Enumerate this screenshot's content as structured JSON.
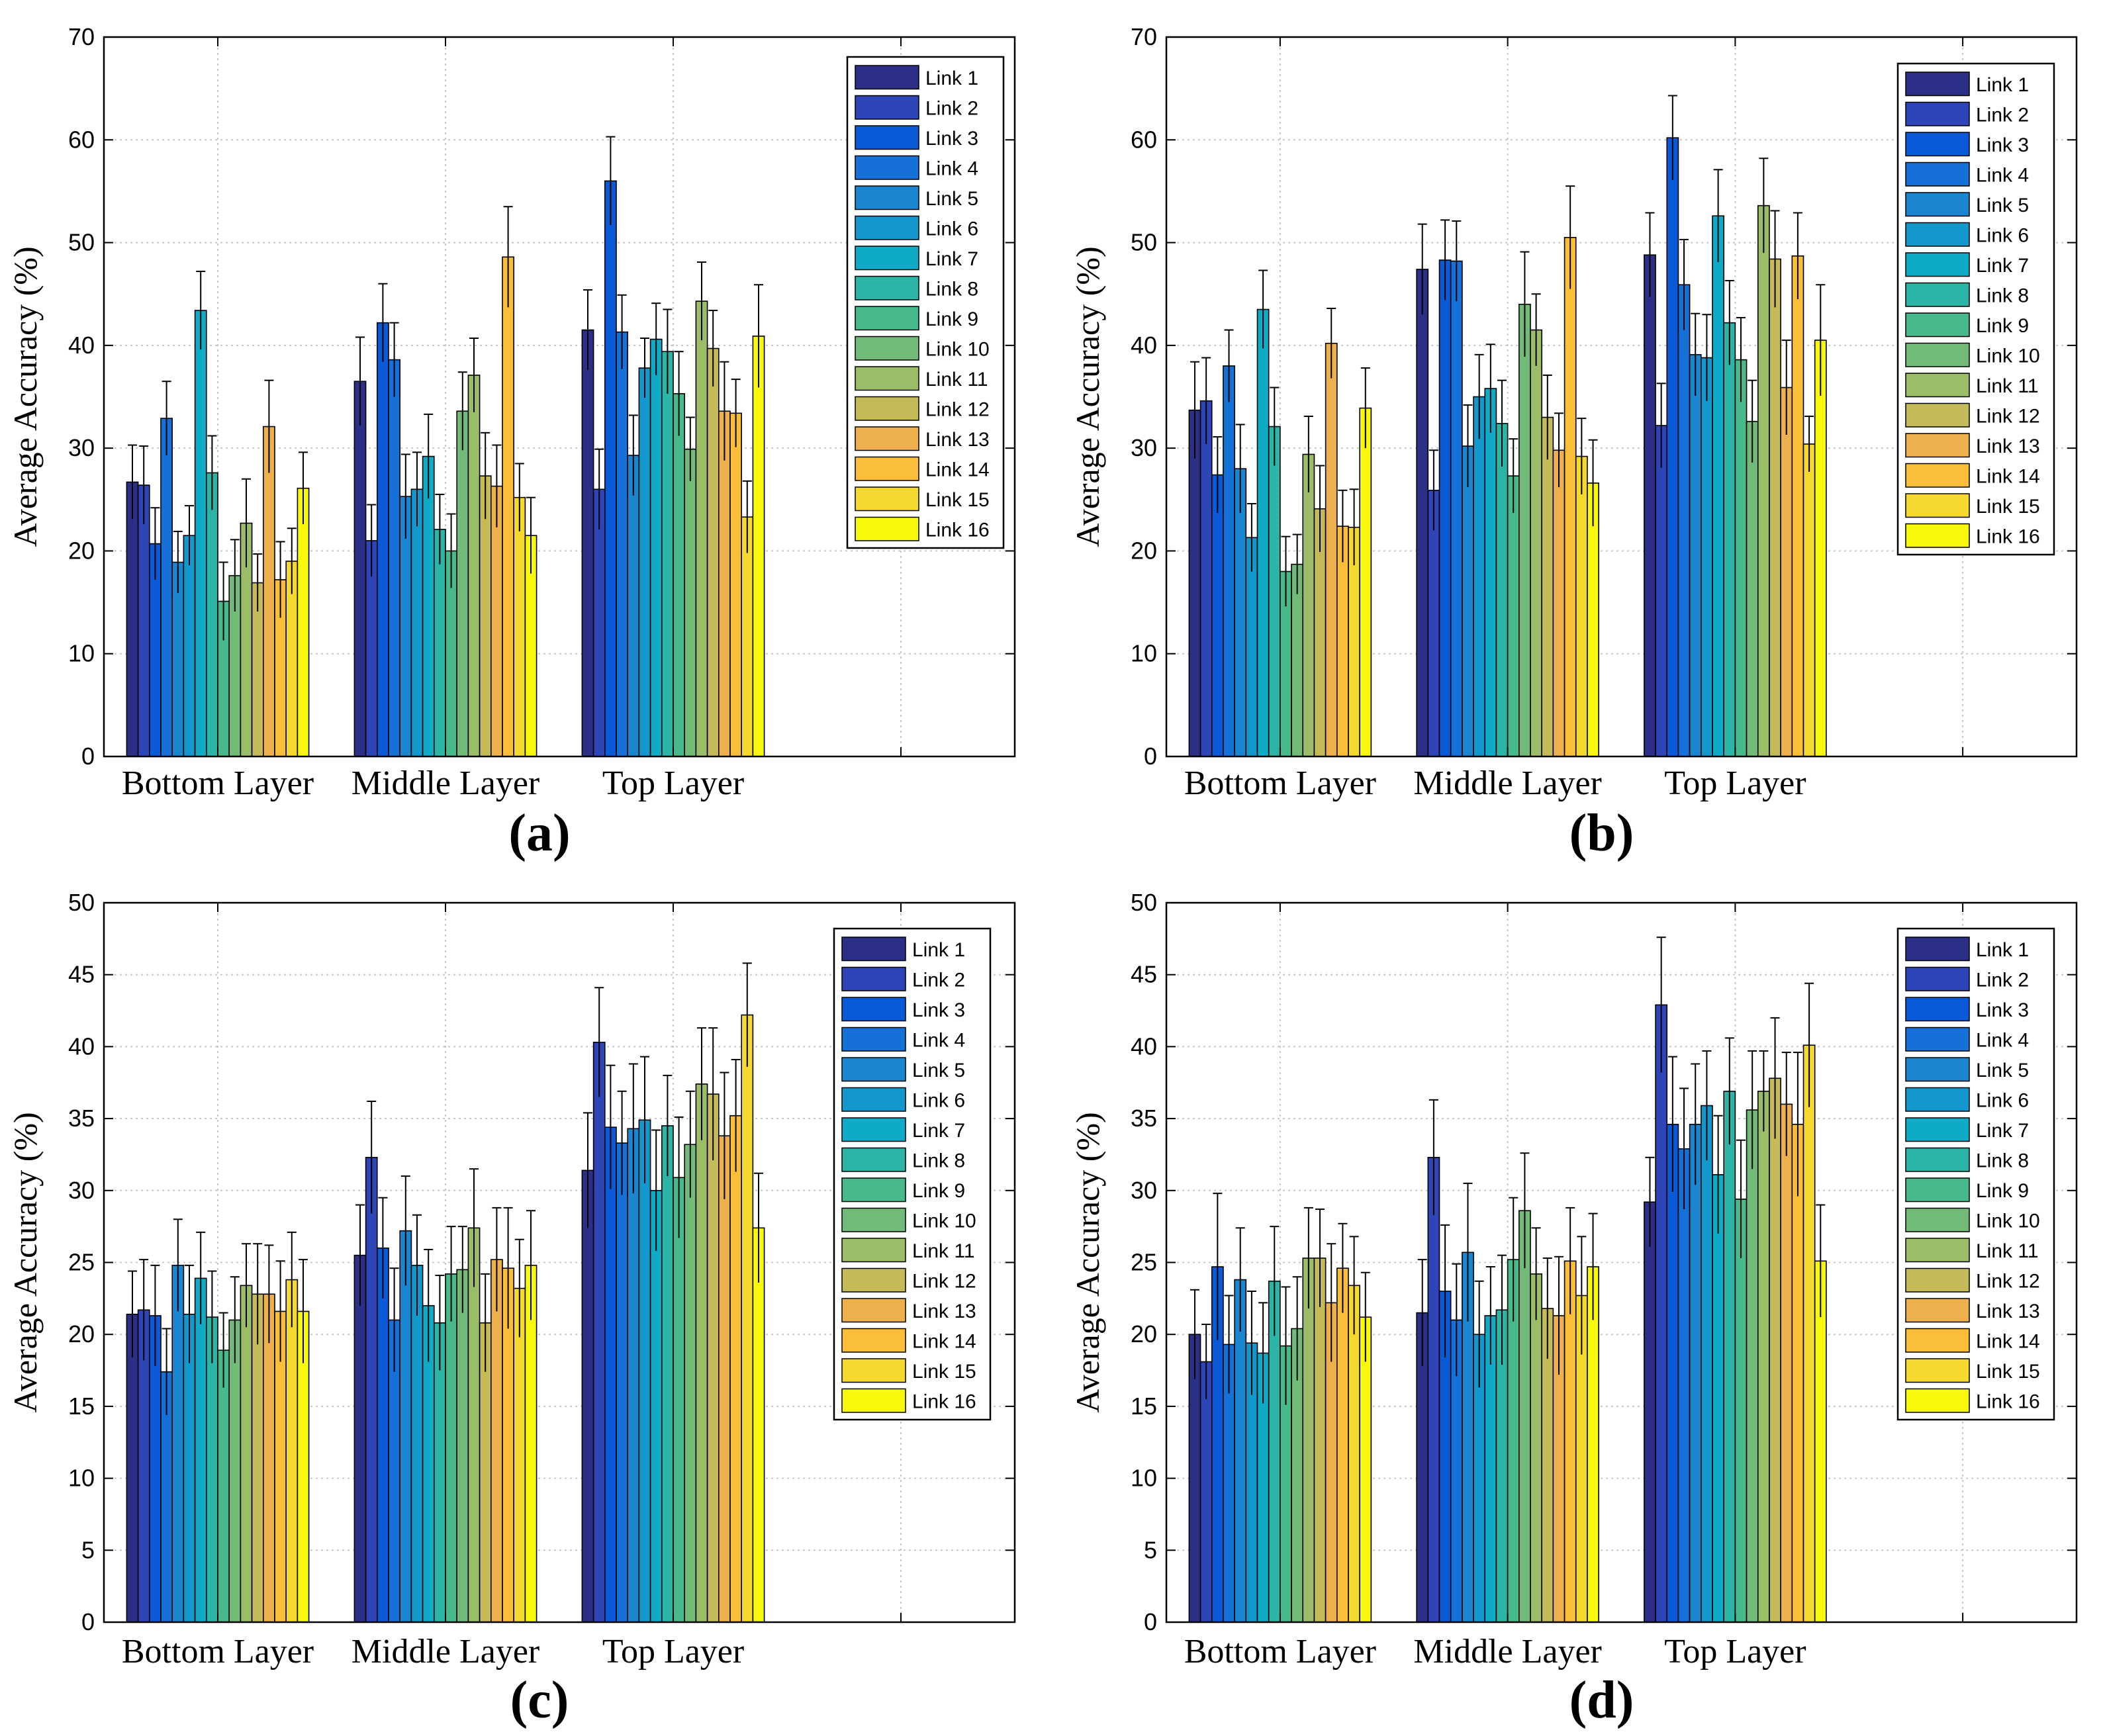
{
  "link_colors": [
    "#2c2f86",
    "#2e45b8",
    "#0a5ad8",
    "#1570d8",
    "#1a86d0",
    "#1298cc",
    "#0eaac6",
    "#2cb5a6",
    "#48b98a",
    "#72ba78",
    "#9cbd68",
    "#c4bb58",
    "#edb04c",
    "#fbbe38",
    "#f5d92e",
    "#f8f80c"
  ],
  "chart_data": [
    {
      "panel": "(a)",
      "type": "bar",
      "ylabel": "Average Accuracy (%)",
      "ylim": [
        0,
        70
      ],
      "yticks": [
        0,
        10,
        20,
        30,
        40,
        50,
        60,
        70
      ],
      "categories": [
        "Bottom Layer",
        "Middle Layer",
        "Top Layer"
      ],
      "legend": [
        "Link 1",
        "Link 2",
        "Link 3",
        "Link 4",
        "Link 5",
        "Link 6",
        "Link 7",
        "Link 8",
        "Link 9",
        "Link 10",
        "Link 11",
        "Link 12",
        "Link 13",
        "Link 14",
        "Link 15",
        "Link 16"
      ],
      "legend_position": "top-right",
      "values": [
        [
          26.7,
          26.4,
          20.7,
          32.9,
          18.9,
          21.5,
          43.4,
          27.6,
          15.1,
          17.6,
          22.7,
          16.9,
          32.1,
          17.2,
          19.0,
          26.1
        ],
        [
          36.5,
          21.0,
          42.2,
          38.6,
          25.3,
          26.0,
          29.2,
          22.1,
          20.0,
          33.6,
          37.1,
          27.3,
          26.3,
          48.6,
          25.2,
          21.5
        ],
        [
          41.5,
          26.0,
          56.0,
          41.3,
          29.3,
          37.8,
          40.6,
          39.4,
          35.3,
          29.9,
          44.3,
          39.7,
          33.6,
          33.4,
          23.3,
          40.9
        ]
      ],
      "errors": [
        [
          3.6,
          3.8,
          3.5,
          3.6,
          3.0,
          2.9,
          3.8,
          3.6,
          3.8,
          3.5,
          4.3,
          2.8,
          4.5,
          3.7,
          3.2,
          3.5
        ],
        [
          4.3,
          3.5,
          3.8,
          3.6,
          4.1,
          3.6,
          4.1,
          3.4,
          3.6,
          3.8,
          3.6,
          4.2,
          4.0,
          4.9,
          3.3,
          3.7
        ],
        [
          3.9,
          3.9,
          4.3,
          3.6,
          3.9,
          2.9,
          3.5,
          4.1,
          4.1,
          3.1,
          3.8,
          3.7,
          4.8,
          3.3,
          3.5,
          5.0
        ]
      ]
    },
    {
      "panel": "(b)",
      "type": "bar",
      "ylabel": "Average Accuracy (%)",
      "ylim": [
        0,
        70
      ],
      "yticks": [
        0,
        10,
        20,
        30,
        40,
        50,
        60,
        70
      ],
      "categories": [
        "Bottom Layer",
        "Middle Layer",
        "Top Layer"
      ],
      "legend": [
        "Link 1",
        "Link 2",
        "Link 3",
        "Link 4",
        "Link 5",
        "Link 6",
        "Link 7",
        "Link 8",
        "Link 9",
        "Link 10",
        "Link 11",
        "Link 12",
        "Link 13",
        "Link 14",
        "Link 15",
        "Link 16"
      ],
      "legend_position": "top-right",
      "values": [
        [
          33.7,
          34.6,
          27.4,
          38.0,
          28.0,
          21.3,
          43.5,
          32.1,
          18.0,
          18.7,
          29.4,
          24.1,
          40.2,
          22.4,
          22.3,
          33.9
        ],
        [
          47.4,
          25.9,
          48.3,
          48.2,
          30.2,
          35.0,
          35.8,
          32.4,
          27.3,
          44.0,
          41.5,
          33.0,
          29.8,
          50.5,
          29.2,
          26.6
        ],
        [
          48.8,
          32.2,
          60.2,
          45.9,
          39.1,
          38.8,
          52.6,
          42.2,
          38.6,
          32.6,
          53.6,
          48.4,
          35.9,
          48.7,
          30.4,
          40.5
        ]
      ],
      "errors": [
        [
          4.7,
          4.2,
          3.7,
          3.5,
          4.3,
          3.3,
          3.8,
          3.8,
          3.4,
          2.9,
          3.7,
          4.2,
          3.4,
          3.5,
          3.7,
          3.9
        ],
        [
          4.4,
          3.9,
          3.9,
          3.9,
          4.0,
          4.1,
          4.3,
          4.2,
          3.6,
          5.1,
          3.5,
          4.1,
          3.6,
          5.0,
          3.7,
          4.2
        ],
        [
          4.1,
          4.1,
          4.1,
          4.4,
          4.0,
          4.2,
          4.5,
          4.1,
          4.1,
          4.0,
          4.6,
          4.7,
          4.6,
          4.2,
          2.7,
          5.4
        ]
      ]
    },
    {
      "panel": "(c)",
      "type": "bar",
      "ylabel": "Average Accuracy (%)",
      "ylim": [
        0,
        50
      ],
      "yticks": [
        0,
        5,
        10,
        15,
        20,
        25,
        30,
        35,
        40,
        45,
        50
      ],
      "categories": [
        "Bottom Layer",
        "Middle Layer",
        "Top Layer"
      ],
      "legend": [
        "Link 1",
        "Link 2",
        "Link 3",
        "Link 4",
        "Link 5",
        "Link 6",
        "Link 7",
        "Link 8",
        "Link 9",
        "Link 10",
        "Link 11",
        "Link 12",
        "Link 13",
        "Link 14",
        "Link 15",
        "Link 16"
      ],
      "legend_position": "top-right",
      "values": [
        [
          21.4,
          21.7,
          21.3,
          17.4,
          24.8,
          21.4,
          23.9,
          21.2,
          18.9,
          21.0,
          23.4,
          22.8,
          22.8,
          21.6,
          23.8,
          21.6
        ],
        [
          25.5,
          32.3,
          26.0,
          21.0,
          27.2,
          24.8,
          22.0,
          20.8,
          24.2,
          24.5,
          27.4,
          20.8,
          25.2,
          24.6,
          23.2,
          24.8
        ],
        [
          31.4,
          40.3,
          34.4,
          33.3,
          34.3,
          34.9,
          30.0,
          34.5,
          30.9,
          33.2,
          37.4,
          36.7,
          33.8,
          35.2,
          42.2,
          27.4
        ]
      ],
      "errors": [
        [
          3.0,
          3.5,
          3.5,
          3.0,
          3.2,
          3.4,
          3.2,
          3.2,
          2.6,
          3.0,
          2.9,
          3.5,
          3.4,
          3.5,
          3.3,
          3.6
        ],
        [
          3.5,
          3.9,
          3.5,
          3.6,
          3.8,
          3.5,
          3.9,
          3.3,
          3.3,
          3.0,
          4.1,
          3.4,
          3.6,
          4.2,
          3.4,
          3.8
        ],
        [
          4.0,
          3.8,
          4.3,
          3.6,
          4.5,
          4.4,
          4.2,
          3.5,
          4.2,
          3.7,
          3.9,
          4.6,
          4.4,
          3.9,
          3.6,
          3.8
        ]
      ]
    },
    {
      "panel": "(d)",
      "type": "bar",
      "ylabel": "Average Accuracy (%)",
      "ylim": [
        0,
        50
      ],
      "yticks": [
        0,
        5,
        10,
        15,
        20,
        25,
        30,
        35,
        40,
        45,
        50
      ],
      "categories": [
        "Bottom Layer",
        "Middle Layer",
        "Top Layer"
      ],
      "legend": [
        "Link 1",
        "Link 2",
        "Link 3",
        "Link 4",
        "Link 5",
        "Link 6",
        "Link 7",
        "Link 8",
        "Link 9",
        "Link 10",
        "Link 11",
        "Link 12",
        "Link 13",
        "Link 14",
        "Link 15",
        "Link 16"
      ],
      "legend_position": "top-right",
      "values": [
        [
          20.0,
          18.1,
          24.7,
          19.3,
          23.8,
          19.4,
          18.7,
          23.7,
          19.2,
          20.4,
          25.3,
          25.3,
          22.2,
          24.6,
          23.4,
          21.2
        ],
        [
          21.5,
          32.3,
          23.0,
          21.0,
          25.7,
          20.0,
          21.3,
          21.7,
          25.2,
          28.6,
          24.2,
          21.8,
          21.3,
          25.1,
          22.7,
          24.7
        ],
        [
          29.2,
          42.9,
          34.6,
          32.9,
          34.6,
          35.9,
          31.1,
          36.9,
          29.4,
          35.6,
          36.9,
          37.8,
          36.0,
          34.6,
          40.1,
          25.1
        ]
      ],
      "errors": [
        [
          3.1,
          2.6,
          5.1,
          3.4,
          3.6,
          3.6,
          3.5,
          3.8,
          4.1,
          3.6,
          3.5,
          3.4,
          4.1,
          3.1,
          3.4,
          3.1
        ],
        [
          3.7,
          4.0,
          4.6,
          3.9,
          4.8,
          3.7,
          3.4,
          3.8,
          4.3,
          4.0,
          3.2,
          3.5,
          4.1,
          3.7,
          4.1,
          3.7
        ],
        [
          3.1,
          4.7,
          4.7,
          4.2,
          4.2,
          3.8,
          4.1,
          3.7,
          4.1,
          4.1,
          2.8,
          4.2,
          3.6,
          5.0,
          4.3,
          3.9
        ]
      ]
    }
  ]
}
